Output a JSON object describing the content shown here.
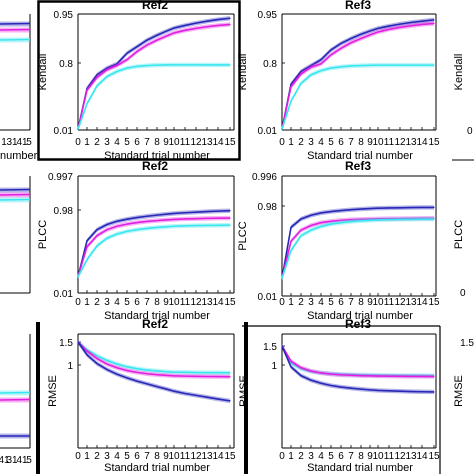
{
  "colors": {
    "blue": "#2727b8",
    "magenta": "#e21fe0",
    "cyan": "#38e6ee",
    "black": "#000000"
  },
  "chart_data": [
    {
      "id": "left-row1",
      "type": "line",
      "title": "",
      "xlabel": "",
      "ylabel": "",
      "x_ticks_visible": [
        "1",
        "31",
        "41",
        "5"
      ],
      "series": [
        {
          "color": "blue",
          "values": [
            0.93,
            0.932,
            0.934
          ]
        },
        {
          "color": "magenta",
          "values": [
            0.905,
            0.907,
            0.91
          ]
        },
        {
          "color": "cyan",
          "values": [
            0.85,
            0.85,
            0.85
          ]
        }
      ]
    },
    {
      "id": "ref2-kendall",
      "type": "line",
      "title": "Ref2",
      "xlabel": "Standard trial number",
      "ylabel": "Kendall",
      "x": [
        0,
        1,
        2,
        3,
        4,
        5,
        6,
        7,
        8,
        9,
        10,
        11,
        12,
        13,
        14,
        15
      ],
      "x_tick_labels": [
        "0",
        "1",
        "2",
        "3",
        "4",
        "5",
        "6",
        "7",
        "8",
        "9",
        "10",
        "11",
        "12",
        "13",
        "14",
        "15"
      ],
      "y_ticks": [
        0.01,
        0.8,
        0.95
      ],
      "y_tick_labels": [
        "0.01",
        "0.8",
        "0.95"
      ],
      "ylim": [
        0.01,
        0.96
      ],
      "series": [
        {
          "color": "blue",
          "values": [
            0.02,
            0.5,
            0.66,
            0.74,
            0.79,
            0.83,
            0.85,
            0.87,
            0.885,
            0.897,
            0.907,
            0.915,
            0.922,
            0.928,
            0.933,
            0.937
          ]
        },
        {
          "color": "magenta",
          "values": [
            0.02,
            0.48,
            0.63,
            0.72,
            0.77,
            0.81,
            0.835,
            0.855,
            0.87,
            0.882,
            0.892,
            0.9,
            0.906,
            0.911,
            0.915,
            0.918
          ]
        },
        {
          "color": "cyan",
          "values": [
            0.02,
            0.32,
            0.53,
            0.64,
            0.7,
            0.74,
            0.76,
            0.77,
            0.775,
            0.777,
            0.778,
            0.778,
            0.778,
            0.777,
            0.777,
            0.777
          ]
        }
      ]
    },
    {
      "id": "ref3-kendall",
      "type": "line",
      "title": "Ref3",
      "xlabel": "Standard trial number",
      "ylabel": "Kendall",
      "x": [
        0,
        1,
        2,
        3,
        4,
        5,
        6,
        7,
        8,
        9,
        10,
        11,
        12,
        13,
        14,
        15
      ],
      "x_tick_labels": [
        "0",
        "1",
        "2",
        "3",
        "4",
        "5",
        "6",
        "7",
        "8",
        "9",
        "10",
        "11",
        "12",
        "13",
        "14",
        "15"
      ],
      "y_ticks": [
        0.01,
        0.8,
        0.95
      ],
      "y_tick_labels": [
        "0.01",
        "0.8",
        "0.95"
      ],
      "ylim": [
        0.01,
        0.96
      ],
      "series": [
        {
          "color": "blue",
          "values": [
            0.02,
            0.55,
            0.7,
            0.77,
            0.81,
            0.84,
            0.86,
            0.875,
            0.888,
            0.898,
            0.906,
            0.913,
            0.919,
            0.924,
            0.928,
            0.932
          ]
        },
        {
          "color": "magenta",
          "values": [
            0.02,
            0.52,
            0.67,
            0.75,
            0.79,
            0.825,
            0.845,
            0.862,
            0.875,
            0.886,
            0.895,
            0.903,
            0.909,
            0.914,
            0.918,
            0.921
          ]
        },
        {
          "color": "cyan",
          "values": [
            0.02,
            0.35,
            0.56,
            0.66,
            0.71,
            0.74,
            0.755,
            0.765,
            0.77,
            0.773,
            0.775,
            0.775,
            0.775,
            0.775,
            0.775,
            0.775
          ]
        }
      ]
    },
    {
      "id": "left-row2",
      "type": "line",
      "title": "",
      "xlabel": "",
      "ylabel": "",
      "series": [
        {
          "color": "blue",
          "values": [
            0.985,
            0.986,
            0.987
          ]
        },
        {
          "color": "magenta",
          "values": [
            0.975,
            0.976,
            0.977
          ]
        },
        {
          "color": "cyan",
          "values": [
            0.965,
            0.965,
            0.965
          ]
        }
      ]
    },
    {
      "id": "ref2-plcc",
      "type": "line",
      "title": "Ref2",
      "xlabel": "Standard trial number",
      "ylabel": "PLCC",
      "x": [
        0,
        1,
        2,
        3,
        4,
        5,
        6,
        7,
        8,
        9,
        10,
        11,
        12,
        13,
        14,
        15
      ],
      "x_tick_labels": [
        "0",
        "1",
        "2",
        "3",
        "4",
        "5",
        "6",
        "7",
        "8",
        "9",
        "10",
        "11",
        "12",
        "13",
        "14",
        "15"
      ],
      "y_ticks": [
        0.01,
        0.98,
        0.997
      ],
      "y_tick_labels": [
        "0.01",
        "0.98",
        "0.997"
      ],
      "ylim": [
        0.01,
        0.997
      ],
      "series": [
        {
          "color": "blue",
          "values": [
            0.2,
            0.62,
            0.75,
            0.81,
            0.848,
            0.873,
            0.892,
            0.907,
            0.92,
            0.931,
            0.94,
            0.948,
            0.955,
            0.962,
            0.967,
            0.972
          ]
        },
        {
          "color": "magenta",
          "values": [
            0.2,
            0.55,
            0.68,
            0.75,
            0.79,
            0.815,
            0.833,
            0.846,
            0.856,
            0.864,
            0.87,
            0.875,
            0.879,
            0.882,
            0.884,
            0.886
          ]
        },
        {
          "color": "cyan",
          "values": [
            0.2,
            0.4,
            0.56,
            0.65,
            0.7,
            0.73,
            0.75,
            0.765,
            0.776,
            0.784,
            0.79,
            0.795,
            0.798,
            0.8,
            0.801,
            0.802
          ]
        }
      ]
    },
    {
      "id": "ref3-plcc",
      "type": "line",
      "title": "Ref3",
      "xlabel": "Standard trial number",
      "ylabel": "PLCC",
      "x": [
        0,
        1,
        2,
        3,
        4,
        5,
        6,
        7,
        8,
        9,
        10,
        11,
        12,
        13,
        14,
        15
      ],
      "x_tick_labels": [
        "0",
        "1",
        "2",
        "3",
        "4",
        "5",
        "6",
        "7",
        "8",
        "9",
        "10",
        "11",
        "12",
        "13",
        "14",
        "15"
      ],
      "y_ticks": [
        0.01,
        0.98,
        0.996
      ],
      "y_tick_labels": [
        "0.01",
        "0.98",
        "0.996"
      ],
      "ylim": [
        0.01,
        0.996
      ],
      "series": [
        {
          "color": "blue",
          "values": [
            0.2,
            0.75,
            0.84,
            0.88,
            0.905,
            0.92,
            0.931,
            0.94,
            0.947,
            0.952,
            0.956,
            0.959,
            0.961,
            0.963,
            0.964,
            0.965
          ]
        },
        {
          "color": "magenta",
          "values": [
            0.2,
            0.6,
            0.72,
            0.77,
            0.8,
            0.815,
            0.825,
            0.832,
            0.836,
            0.839,
            0.842,
            0.844,
            0.845,
            0.846,
            0.847,
            0.848
          ]
        },
        {
          "color": "cyan",
          "values": [
            0.2,
            0.5,
            0.66,
            0.72,
            0.76,
            0.785,
            0.8,
            0.812,
            0.82,
            0.826,
            0.83,
            0.833,
            0.835,
            0.837,
            0.838,
            0.839
          ]
        }
      ]
    },
    {
      "id": "left-row3",
      "type": "line",
      "title": "",
      "xlabel": "",
      "ylabel": "",
      "x_ticks_visible": [
        "41",
        "31",
        "41",
        "5"
      ],
      "series": [
        {
          "color": "cyan",
          "values": [
            0.75,
            0.75,
            0.75
          ]
        },
        {
          "color": "magenta",
          "values": [
            0.6,
            0.6,
            0.6
          ]
        },
        {
          "color": "blue",
          "values": [
            0.15,
            0.13,
            0.12
          ]
        }
      ]
    },
    {
      "id": "ref2-rmse",
      "type": "line",
      "title": "Ref2",
      "xlabel": "Standard trial number",
      "ylabel": "RMSE",
      "x": [
        0,
        1,
        2,
        3,
        4,
        5,
        6,
        7,
        8,
        9,
        10,
        11,
        12,
        13,
        14,
        15
      ],
      "x_tick_labels": [
        "0",
        "1",
        "2",
        "3",
        "4",
        "5",
        "6",
        "7",
        "8",
        "9",
        "10",
        "11",
        "12",
        "13",
        "14",
        "15"
      ],
      "y_ticks": [
        1,
        1.5
      ],
      "y_tick_labels": [
        "1",
        "1.5"
      ],
      "ylim": [
        0.0,
        1.6
      ],
      "series": [
        {
          "color": "cyan",
          "values": [
            1.5,
            1.33,
            1.2,
            1.1,
            1.02,
            0.96,
            0.92,
            0.89,
            0.87,
            0.855,
            0.845,
            0.84,
            0.835,
            0.833,
            0.832,
            0.83
          ]
        },
        {
          "color": "magenta",
          "values": [
            1.5,
            1.3,
            1.14,
            1.02,
            0.94,
            0.88,
            0.84,
            0.81,
            0.79,
            0.775,
            0.765,
            0.758,
            0.753,
            0.75,
            0.748,
            0.747
          ]
        },
        {
          "color": "blue",
          "values": [
            1.5,
            1.22,
            1.03,
            0.9,
            0.8,
            0.72,
            0.65,
            0.59,
            0.53,
            0.48,
            0.43,
            0.38,
            0.34,
            0.3,
            0.26,
            0.22
          ]
        }
      ]
    },
    {
      "id": "ref3-rmse",
      "type": "line",
      "title": "Ref3",
      "xlabel": "Standard trial number",
      "ylabel": "RMSE",
      "x": [
        0,
        1,
        2,
        3,
        4,
        5,
        6,
        7,
        8,
        9,
        10,
        11,
        12,
        13,
        14,
        15
      ],
      "x_tick_labels": [
        "0",
        "1",
        "2",
        "3",
        "4",
        "5",
        "6",
        "7",
        "8",
        "9",
        "10",
        "11",
        "12",
        "13",
        "14",
        "15"
      ],
      "y_ticks": [
        1,
        1.5
      ],
      "y_tick_labels": [
        "1",
        "1.5"
      ],
      "ylim": [
        0.0,
        1.6
      ],
      "series": [
        {
          "color": "cyan",
          "values": [
            1.5,
            1.05,
            0.9,
            0.83,
            0.79,
            0.77,
            0.755,
            0.745,
            0.74,
            0.735,
            0.73,
            0.728,
            0.726,
            0.725,
            0.724,
            0.723
          ]
        },
        {
          "color": "magenta",
          "values": [
            1.5,
            1.1,
            0.93,
            0.84,
            0.79,
            0.76,
            0.74,
            0.73,
            0.72,
            0.715,
            0.71,
            0.706,
            0.703,
            0.7,
            0.698,
            0.697
          ]
        },
        {
          "color": "blue",
          "values": [
            1.5,
            0.95,
            0.72,
            0.6,
            0.52,
            0.46,
            0.42,
            0.39,
            0.365,
            0.345,
            0.33,
            0.32,
            0.31,
            0.302,
            0.296,
            0.29
          ]
        }
      ]
    },
    {
      "id": "right-row1",
      "type": "line",
      "title": "",
      "xlabel": "",
      "ylabel": "Kendall",
      "series": []
    },
    {
      "id": "right-row2",
      "type": "line",
      "title": "",
      "xlabel": "",
      "ylabel": "PLCC",
      "series": []
    },
    {
      "id": "right-row3",
      "type": "line",
      "title": "",
      "xlabel": "",
      "ylabel": "RMSE",
      "y_tick_labels": [
        "1.5"
      ],
      "series": []
    }
  ]
}
